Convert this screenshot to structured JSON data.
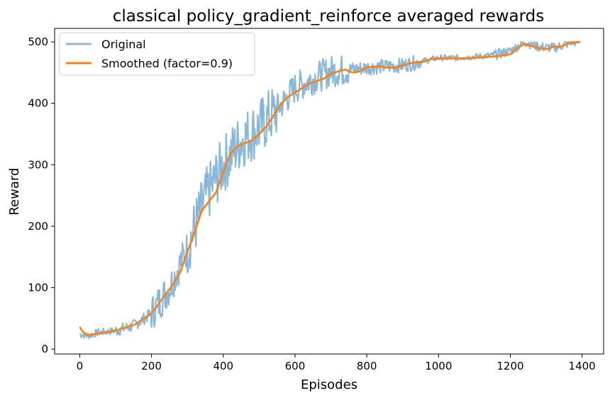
{
  "chart_data": {
    "type": "line",
    "title": "classical policy_gradient_reinforce averaged rewards",
    "xlabel": "Episodes",
    "ylabel": "Reward",
    "xlim": [
      -70,
      1460
    ],
    "ylim": [
      -8,
      522
    ],
    "xticks": [
      0,
      200,
      400,
      600,
      800,
      1000,
      1200,
      1400
    ],
    "yticks": [
      0,
      100,
      200,
      300,
      400,
      500
    ],
    "grid": false,
    "legend_position": "top-left",
    "series": [
      {
        "name": "Original",
        "color": "#8ab8da",
        "noisy": true,
        "anchors": [
          [
            0,
            24
          ],
          [
            25,
            22
          ],
          [
            50,
            27
          ],
          [
            100,
            30
          ],
          [
            150,
            38
          ],
          [
            200,
            58
          ],
          [
            250,
            100
          ],
          [
            300,
            165
          ],
          [
            350,
            245
          ],
          [
            400,
            300
          ],
          [
            450,
            340
          ],
          [
            500,
            360
          ],
          [
            550,
            390
          ],
          [
            600,
            425
          ],
          [
            650,
            440
          ],
          [
            700,
            452
          ],
          [
            750,
            455
          ],
          [
            800,
            458
          ],
          [
            850,
            460
          ],
          [
            900,
            462
          ],
          [
            950,
            468
          ],
          [
            1000,
            474
          ],
          [
            1050,
            474
          ],
          [
            1100,
            476
          ],
          [
            1150,
            478
          ],
          [
            1200,
            485
          ],
          [
            1240,
            500
          ],
          [
            1280,
            492
          ],
          [
            1320,
            490
          ],
          [
            1350,
            495
          ],
          [
            1370,
            500
          ],
          [
            1400,
            500
          ]
        ]
      },
      {
        "name": "Smoothed (factor=0.9)",
        "color": "#ff7f0e",
        "noisy": false,
        "points": [
          [
            0,
            36
          ],
          [
            10,
            27
          ],
          [
            20,
            23
          ],
          [
            30,
            23
          ],
          [
            45,
            25
          ],
          [
            60,
            26
          ],
          [
            80,
            28
          ],
          [
            100,
            30
          ],
          [
            120,
            34
          ],
          [
            150,
            39
          ],
          [
            180,
            50
          ],
          [
            200,
            58
          ],
          [
            230,
            82
          ],
          [
            260,
            105
          ],
          [
            280,
            125
          ],
          [
            300,
            158
          ],
          [
            320,
            190
          ],
          [
            340,
            225
          ],
          [
            360,
            240
          ],
          [
            380,
            255
          ],
          [
            400,
            288
          ],
          [
            420,
            318
          ],
          [
            440,
            330
          ],
          [
            460,
            335
          ],
          [
            480,
            340
          ],
          [
            500,
            350
          ],
          [
            520,
            362
          ],
          [
            540,
            380
          ],
          [
            560,
            398
          ],
          [
            580,
            410
          ],
          [
            600,
            418
          ],
          [
            620,
            425
          ],
          [
            640,
            432
          ],
          [
            660,
            436
          ],
          [
            680,
            440
          ],
          [
            700,
            448
          ],
          [
            720,
            452
          ],
          [
            740,
            455
          ],
          [
            760,
            450
          ],
          [
            780,
            452
          ],
          [
            800,
            458
          ],
          [
            820,
            460
          ],
          [
            840,
            460
          ],
          [
            860,
            458
          ],
          [
            880,
            458
          ],
          [
            900,
            462
          ],
          [
            920,
            465
          ],
          [
            940,
            467
          ],
          [
            960,
            468
          ],
          [
            980,
            472
          ],
          [
            1000,
            473
          ],
          [
            1050,
            473
          ],
          [
            1100,
            474
          ],
          [
            1150,
            476
          ],
          [
            1180,
            478
          ],
          [
            1200,
            480
          ],
          [
            1220,
            490
          ],
          [
            1240,
            497
          ],
          [
            1260,
            493
          ],
          [
            1280,
            490
          ],
          [
            1300,
            488
          ],
          [
            1320,
            492
          ],
          [
            1340,
            492
          ],
          [
            1360,
            497
          ],
          [
            1380,
            499
          ],
          [
            1395,
            500
          ]
        ]
      }
    ]
  }
}
